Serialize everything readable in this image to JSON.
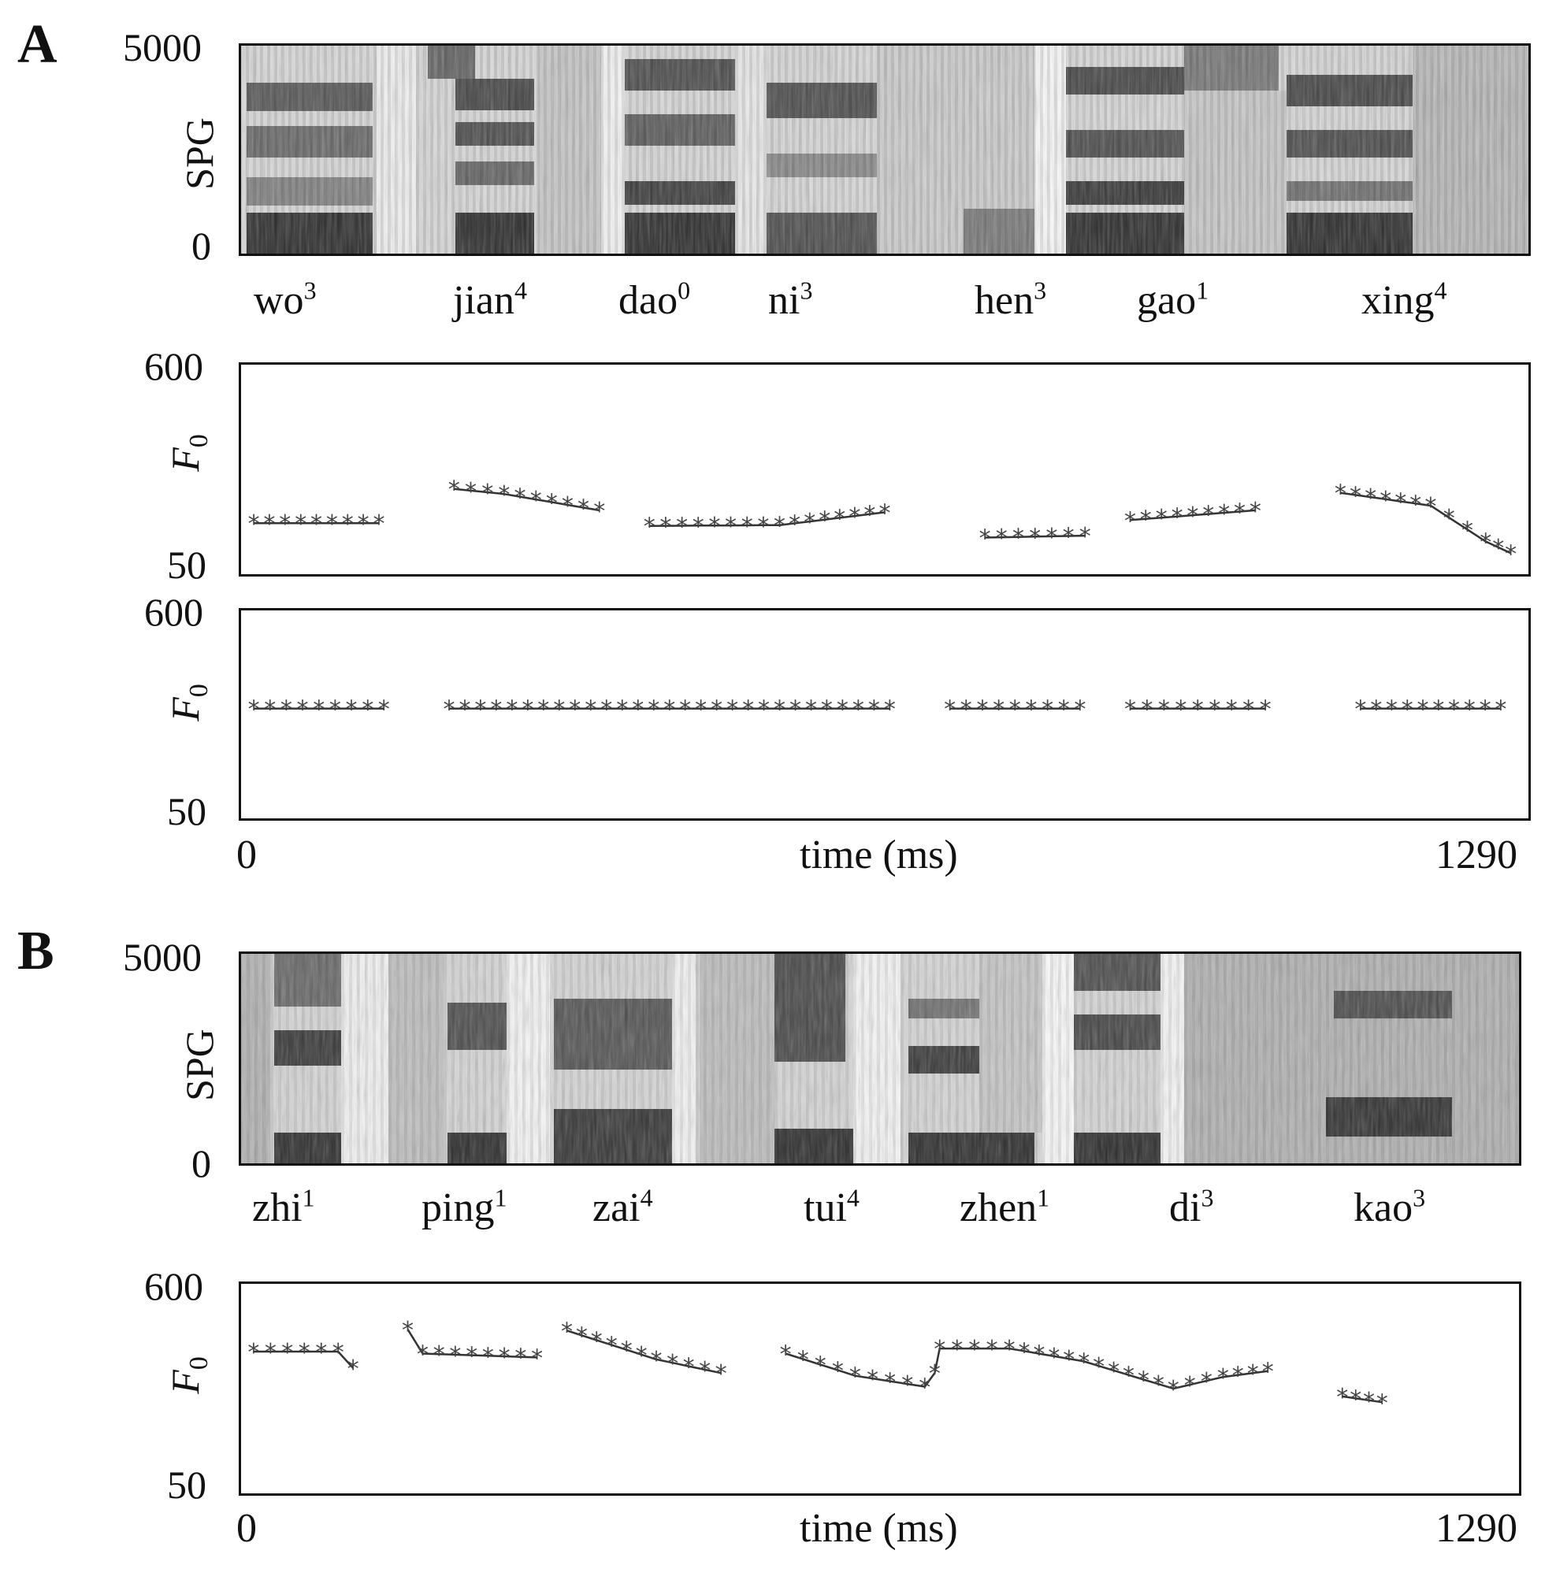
{
  "panels": [
    {
      "letter": "A",
      "spectrogram": {
        "ylabel": "SPG",
        "ytick_top": "5000",
        "ytick_bottom": "0",
        "syllables": [
          {
            "base": "wo",
            "tone": "3"
          },
          {
            "base": "jian",
            "tone": "4"
          },
          {
            "base": "dao",
            "tone": "0"
          },
          {
            "base": "ni",
            "tone": "3"
          },
          {
            "base": "hen",
            "tone": "3"
          },
          {
            "base": "gao",
            "tone": "1"
          },
          {
            "base": "xing",
            "tone": "4"
          }
        ]
      },
      "f0_panels": [
        {
          "ylabel_main": "F",
          "ylabel_sub": "0",
          "ytick_top": "600",
          "ytick_bottom": "50"
        },
        {
          "ylabel_main": "F",
          "ylabel_sub": "0",
          "ytick_top": "600",
          "ytick_bottom": "50"
        }
      ],
      "xaxis": {
        "start": "0",
        "label": "time (ms)",
        "end": "1290"
      }
    },
    {
      "letter": "B",
      "spectrogram": {
        "ylabel": "SPG",
        "ytick_top": "5000",
        "ytick_bottom": "0",
        "syllables": [
          {
            "base": "zhi",
            "tone": "1"
          },
          {
            "base": "ping",
            "tone": "1"
          },
          {
            "base": "zai",
            "tone": "4"
          },
          {
            "base": "tui",
            "tone": "4"
          },
          {
            "base": "zhen",
            "tone": "1"
          },
          {
            "base": "di",
            "tone": "3"
          },
          {
            "base": "kao",
            "tone": "3"
          }
        ]
      },
      "f0_panels": [
        {
          "ylabel_main": "F",
          "ylabel_sub": "0",
          "ytick_top": "600",
          "ytick_bottom": "50"
        }
      ],
      "xaxis": {
        "start": "0",
        "label": "time (ms)",
        "end": "1290"
      }
    }
  ],
  "chart_data": [
    {
      "type": "line",
      "panel": "A-F0",
      "xlim": [
        0,
        1290
      ],
      "ylim": [
        50,
        600
      ],
      "series": [
        {
          "segments": [
            [
              [
                15,
                187
              ],
              [
                140,
                187
              ]
            ],
            [
              [
                215,
                275
              ],
              [
                265,
                262
              ],
              [
                360,
                220
              ]
            ],
            [
              [
                410,
                180
              ],
              [
                540,
                182
              ],
              [
                645,
                215
              ]
            ],
            [
              [
                745,
                150
              ],
              [
                845,
                155
              ]
            ],
            [
              [
                890,
                195
              ],
              [
                1015,
                220
              ]
            ],
            [
              [
                1100,
                265
              ],
              [
                1190,
                232
              ],
              [
                1245,
                140
              ],
              [
                1270,
                110
              ]
            ]
          ]
        },
        {
          "segments": [
            [
              [
                15,
                340
              ],
              [
                145,
                340
              ]
            ],
            [
              [
                210,
                340
              ],
              [
                650,
                340
              ]
            ],
            [
              [
                710,
                340
              ],
              [
                840,
                340
              ]
            ],
            [
              [
                890,
                340
              ],
              [
                1025,
                340
              ]
            ],
            [
              [
                1120,
                340
              ],
              [
                1260,
                340
              ]
            ]
          ]
        }
      ]
    },
    {
      "type": "line",
      "panel": "B-F0",
      "xlim": [
        0,
        1290
      ],
      "ylim": [
        50,
        600
      ],
      "series": [
        {
          "segments": [
            [
              [
                15,
                420
              ],
              [
                100,
                420
              ],
              [
                115,
                378
              ]
            ],
            [
              [
                170,
                477
              ],
              [
                185,
                415
              ],
              [
                300,
                405
              ]
            ],
            [
              [
                330,
                474
              ],
              [
                420,
                400
              ],
              [
                485,
                365
              ]
            ],
            [
              [
                550,
                415
              ],
              [
                620,
                358
              ],
              [
                690,
                330
              ],
              [
                700,
                365
              ],
              [
                705,
                428
              ],
              [
                775,
                428
              ],
              [
                850,
                395
              ],
              [
                940,
                325
              ],
              [
                990,
                355
              ],
              [
                1035,
                370
              ]
            ],
            [
              [
                1110,
                305
              ],
              [
                1150,
                290
              ]
            ]
          ]
        }
      ]
    }
  ]
}
